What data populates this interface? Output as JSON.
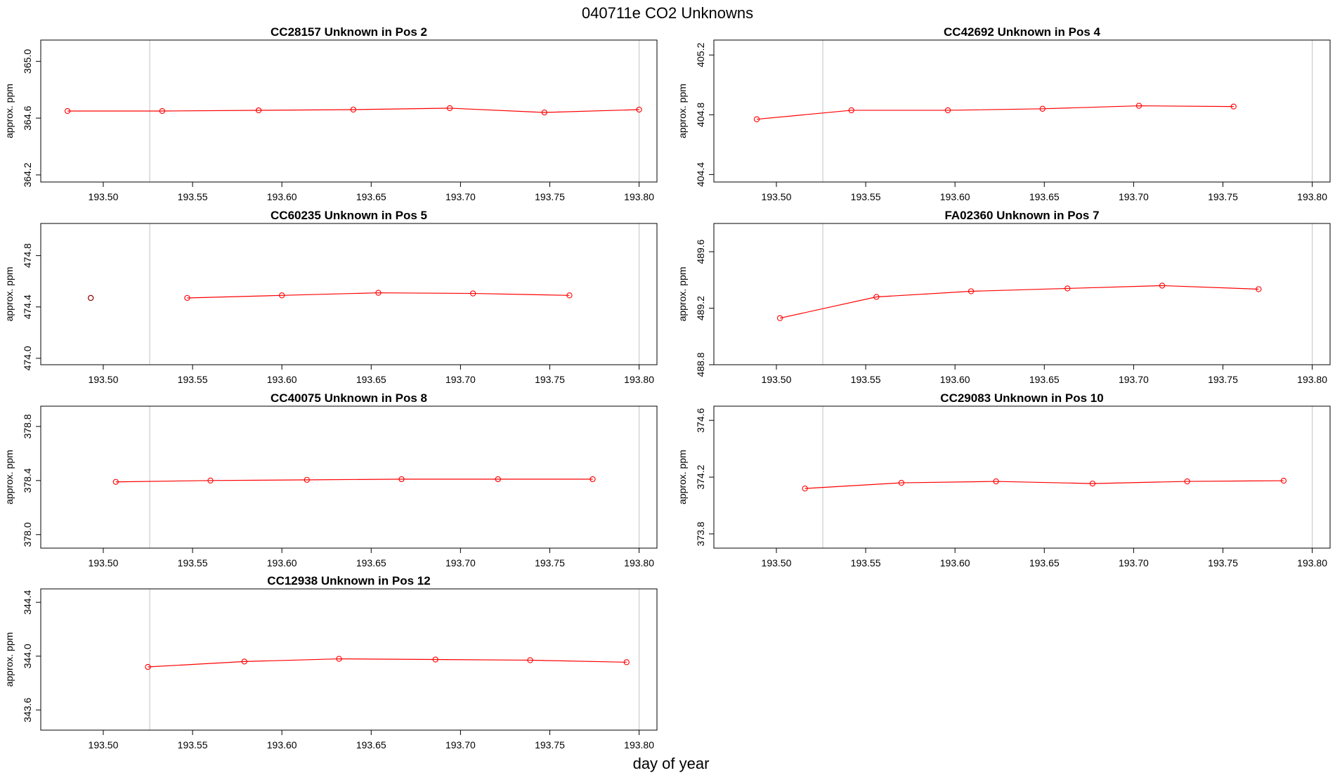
{
  "figure": {
    "title": "040711e  CO2 Unknowns",
    "xlabel": "day of year",
    "colors": {
      "series": "#ff0000",
      "frame": "#000000",
      "refline": "#cccccc",
      "extra_point": "#8b0000"
    }
  },
  "chart_data": [
    {
      "type": "line",
      "title": "CC28157    Unknown in Pos 2",
      "xlabel": "day of year",
      "ylabel": "approx. ppm",
      "xlim": [
        193.465,
        193.81
      ],
      "ylim": [
        364.15,
        365.15
      ],
      "xticks": [
        "193.50",
        "193.55",
        "193.60",
        "193.65",
        "193.70",
        "193.75",
        "193.80"
      ],
      "yticks": [
        "364.2",
        "364.6",
        "365.0"
      ],
      "ref_x": [
        193.526,
        193.8
      ],
      "series": [
        {
          "x": [
            193.48,
            193.533,
            193.587,
            193.64,
            193.694,
            193.747,
            193.8
          ],
          "y": [
            364.65,
            364.65,
            364.655,
            364.66,
            364.67,
            364.64,
            364.66
          ]
        }
      ]
    },
    {
      "type": "line",
      "title": "CC42692    Unknown in Pos 4",
      "xlabel": "day of year",
      "ylabel": "approx. ppm",
      "xlim": [
        193.465,
        193.81
      ],
      "ylim": [
        404.35,
        405.3
      ],
      "xticks": [
        "193.50",
        "193.55",
        "193.60",
        "193.65",
        "193.70",
        "193.75",
        "193.80"
      ],
      "yticks": [
        "404.4",
        "404.8",
        "405.2"
      ],
      "ref_x": [
        193.526,
        193.8
      ],
      "series": [
        {
          "x": [
            193.489,
            193.542,
            193.596,
            193.649,
            193.703,
            193.756
          ],
          "y": [
            404.77,
            404.83,
            404.83,
            404.84,
            404.86,
            404.855
          ]
        }
      ]
    },
    {
      "type": "line",
      "title": "CC60235    Unknown in Pos 5",
      "xlabel": "day of year",
      "ylabel": "approx. ppm",
      "xlim": [
        193.465,
        193.81
      ],
      "ylim": [
        473.95,
        475.05
      ],
      "xticks": [
        "193.50",
        "193.55",
        "193.60",
        "193.65",
        "193.70",
        "193.75",
        "193.80"
      ],
      "yticks": [
        "474.0",
        "474.4",
        "474.8"
      ],
      "ref_x": [
        193.526,
        193.8
      ],
      "extra_points": [
        {
          "x": 193.493,
          "y": 474.47
        }
      ],
      "series": [
        {
          "x": [
            193.547,
            193.6,
            193.654,
            193.707,
            193.761
          ],
          "y": [
            474.47,
            474.49,
            474.51,
            474.505,
            474.49
          ]
        }
      ]
    },
    {
      "type": "line",
      "title": "FA02360    Unknown in Pos 7",
      "xlabel": "day of year",
      "ylabel": "approx. ppm",
      "xlim": [
        193.465,
        193.81
      ],
      "ylim": [
        488.8,
        489.8
      ],
      "xticks": [
        "193.50",
        "193.55",
        "193.60",
        "193.65",
        "193.70",
        "193.75",
        "193.80"
      ],
      "yticks": [
        "488.8",
        "489.2",
        "489.6"
      ],
      "ref_x": [
        193.526,
        193.8
      ],
      "series": [
        {
          "x": [
            193.502,
            193.556,
            193.609,
            193.663,
            193.716,
            193.77
          ],
          "y": [
            489.13,
            489.28,
            489.32,
            489.34,
            489.36,
            489.335
          ]
        }
      ]
    },
    {
      "type": "line",
      "title": "CC40075    Unknown in Pos 8",
      "xlabel": "day of year",
      "ylabel": "approx. ppm",
      "xlim": [
        193.465,
        193.81
      ],
      "ylim": [
        377.9,
        378.95
      ],
      "xticks": [
        "193.50",
        "193.55",
        "193.60",
        "193.65",
        "193.70",
        "193.75",
        "193.80"
      ],
      "yticks": [
        "378.0",
        "378.4",
        "378.8"
      ],
      "ref_x": [
        193.526,
        193.8
      ],
      "series": [
        {
          "x": [
            193.507,
            193.56,
            193.614,
            193.667,
            193.721,
            193.774
          ],
          "y": [
            378.39,
            378.4,
            378.405,
            378.41,
            378.41,
            378.41
          ]
        }
      ]
    },
    {
      "type": "line",
      "title": "CC29083    Unknown in Pos 10",
      "xlabel": "day of year",
      "ylabel": "approx. ppm",
      "xlim": [
        193.465,
        193.81
      ],
      "ylim": [
        373.7,
        374.7
      ],
      "xticks": [
        "193.50",
        "193.55",
        "193.60",
        "193.65",
        "193.70",
        "193.75",
        "193.80"
      ],
      "yticks": [
        "373.8",
        "374.2",
        "374.6"
      ],
      "ref_x": [
        193.526,
        193.8
      ],
      "series": [
        {
          "x": [
            193.516,
            193.57,
            193.623,
            193.677,
            193.73,
            193.784
          ],
          "y": [
            374.12,
            374.16,
            374.17,
            374.155,
            374.17,
            374.175
          ]
        }
      ]
    },
    {
      "type": "line",
      "title": "CC12938    Unknown in Pos 12",
      "xlabel": "day of year",
      "ylabel": "approx. ppm",
      "xlim": [
        193.465,
        193.81
      ],
      "ylim": [
        343.45,
        344.5
      ],
      "xticks": [
        "193.50",
        "193.55",
        "193.60",
        "193.65",
        "193.70",
        "193.75",
        "193.80"
      ],
      "yticks": [
        "343.6",
        "344.0",
        "344.4"
      ],
      "ref_x": [
        193.526,
        193.8
      ],
      "series": [
        {
          "x": [
            193.525,
            193.579,
            193.632,
            193.686,
            193.739,
            193.793
          ],
          "y": [
            343.92,
            343.96,
            343.98,
            343.975,
            343.97,
            343.955
          ]
        }
      ]
    }
  ]
}
